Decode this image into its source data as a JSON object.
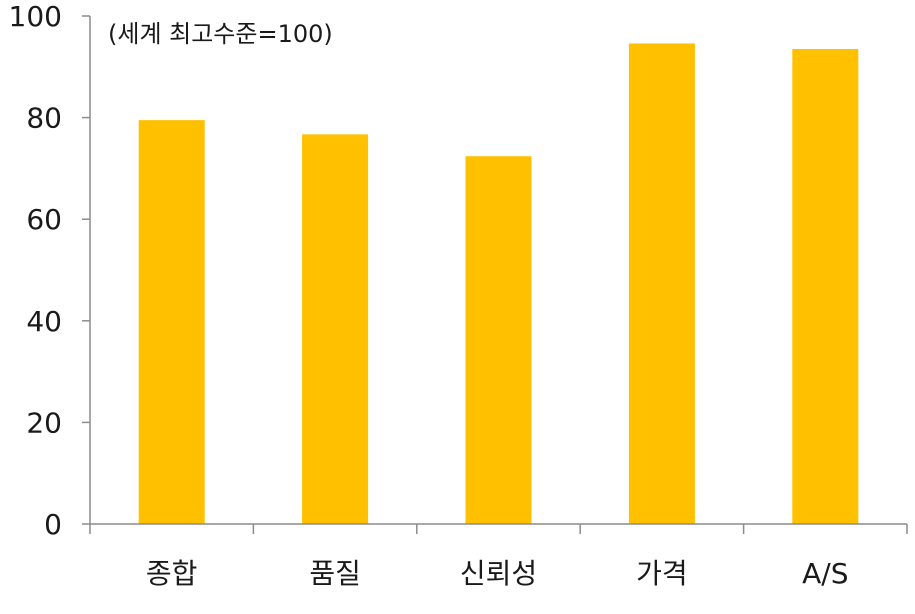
{
  "chart_data": {
    "type": "bar",
    "annotation": "(세계 최고수준=100)",
    "categories": [
      "종합",
      "품질",
      "신뢰성",
      "가격",
      "A/S"
    ],
    "values": [
      79.5,
      76.7,
      72.4,
      94.6,
      93.5
    ],
    "ylim": [
      0,
      100
    ],
    "yticks": [
      0,
      20,
      40,
      60,
      80,
      100
    ],
    "grid": false,
    "bar_color": "#FFC000"
  }
}
